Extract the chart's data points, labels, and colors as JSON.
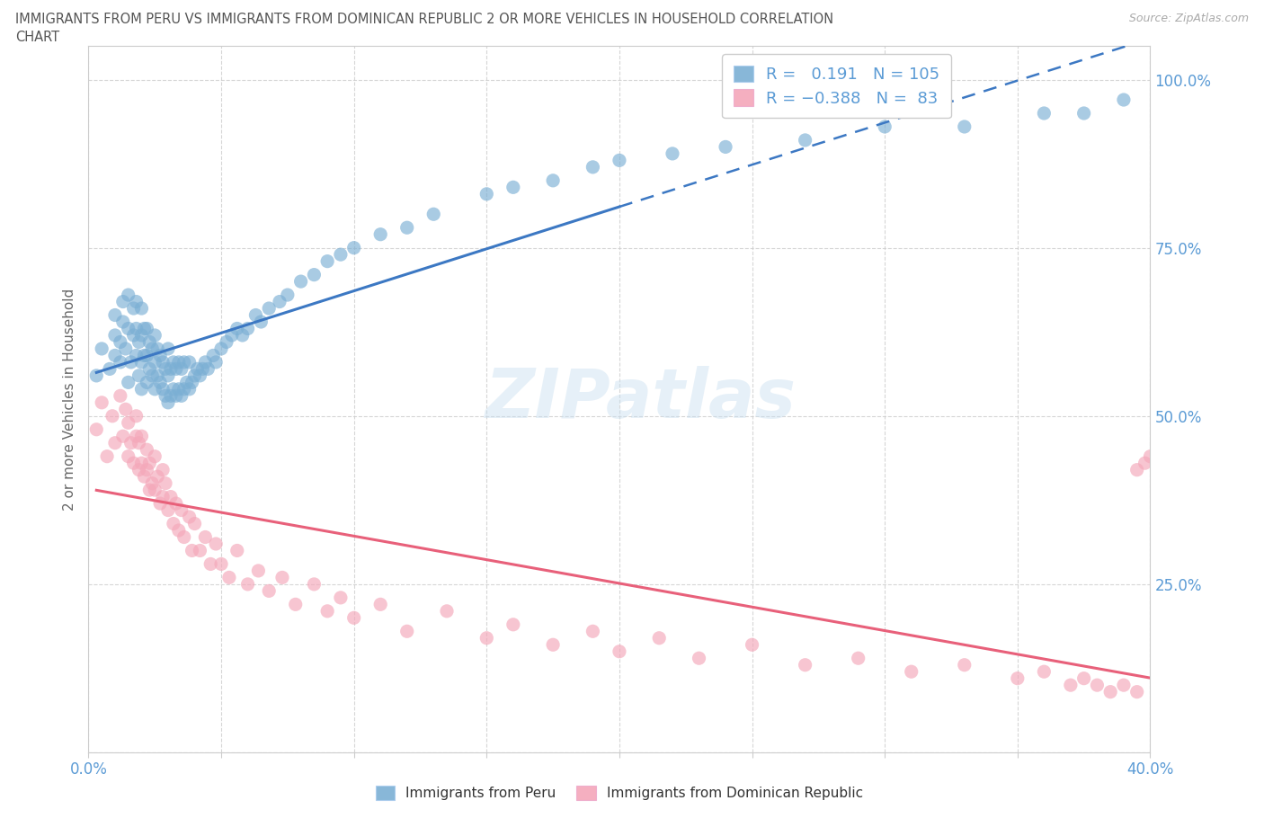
{
  "title_line1": "IMMIGRANTS FROM PERU VS IMMIGRANTS FROM DOMINICAN REPUBLIC 2 OR MORE VEHICLES IN HOUSEHOLD CORRELATION",
  "title_line2": "CHART",
  "source": "Source: ZipAtlas.com",
  "ylabel": "2 or more Vehicles in Household",
  "xlim": [
    0.0,
    0.4
  ],
  "ylim": [
    0.0,
    1.05
  ],
  "yticks": [
    0.0,
    0.25,
    0.5,
    0.75,
    1.0
  ],
  "right_yticklabels": [
    "",
    "25.0%",
    "50.0%",
    "75.0%",
    "100.0%"
  ],
  "blue_color": "#7bafd4",
  "pink_color": "#f4a7b9",
  "blue_line_color": "#3c78c3",
  "pink_line_color": "#e8607a",
  "blue_r": 0.191,
  "blue_n": 105,
  "pink_r": -0.388,
  "pink_n": 83,
  "legend_label_blue": "Immigrants from Peru",
  "legend_label_pink": "Immigrants from Dominican Republic",
  "watermark": "ZIPatlas",
  "background_color": "#ffffff",
  "grid_color": "#cccccc",
  "tick_label_color": "#5b9bd5",
  "title_color": "#555555",
  "peru_x": [
    0.003,
    0.005,
    0.008,
    0.01,
    0.01,
    0.01,
    0.012,
    0.012,
    0.013,
    0.013,
    0.014,
    0.015,
    0.015,
    0.015,
    0.016,
    0.017,
    0.017,
    0.018,
    0.018,
    0.018,
    0.019,
    0.019,
    0.02,
    0.02,
    0.02,
    0.02,
    0.021,
    0.021,
    0.022,
    0.022,
    0.022,
    0.023,
    0.023,
    0.024,
    0.024,
    0.025,
    0.025,
    0.025,
    0.026,
    0.026,
    0.027,
    0.027,
    0.028,
    0.028,
    0.029,
    0.029,
    0.03,
    0.03,
    0.03,
    0.031,
    0.031,
    0.032,
    0.032,
    0.033,
    0.033,
    0.034,
    0.034,
    0.035,
    0.035,
    0.036,
    0.036,
    0.037,
    0.038,
    0.038,
    0.039,
    0.04,
    0.041,
    0.042,
    0.043,
    0.044,
    0.045,
    0.047,
    0.048,
    0.05,
    0.052,
    0.054,
    0.056,
    0.058,
    0.06,
    0.063,
    0.065,
    0.068,
    0.072,
    0.075,
    0.08,
    0.085,
    0.09,
    0.095,
    0.1,
    0.11,
    0.12,
    0.13,
    0.15,
    0.16,
    0.175,
    0.19,
    0.2,
    0.22,
    0.24,
    0.27,
    0.3,
    0.33,
    0.36,
    0.375,
    0.39
  ],
  "peru_y": [
    0.56,
    0.6,
    0.57,
    0.59,
    0.62,
    0.65,
    0.58,
    0.61,
    0.64,
    0.67,
    0.6,
    0.55,
    0.63,
    0.68,
    0.58,
    0.62,
    0.66,
    0.59,
    0.63,
    0.67,
    0.56,
    0.61,
    0.54,
    0.58,
    0.62,
    0.66,
    0.59,
    0.63,
    0.55,
    0.59,
    0.63,
    0.57,
    0.61,
    0.56,
    0.6,
    0.54,
    0.58,
    0.62,
    0.56,
    0.6,
    0.55,
    0.59,
    0.54,
    0.58,
    0.53,
    0.57,
    0.52,
    0.56,
    0.6,
    0.53,
    0.57,
    0.54,
    0.58,
    0.53,
    0.57,
    0.54,
    0.58,
    0.53,
    0.57,
    0.54,
    0.58,
    0.55,
    0.54,
    0.58,
    0.55,
    0.56,
    0.57,
    0.56,
    0.57,
    0.58,
    0.57,
    0.59,
    0.58,
    0.6,
    0.61,
    0.62,
    0.63,
    0.62,
    0.63,
    0.65,
    0.64,
    0.66,
    0.67,
    0.68,
    0.7,
    0.71,
    0.73,
    0.74,
    0.75,
    0.77,
    0.78,
    0.8,
    0.83,
    0.84,
    0.85,
    0.87,
    0.88,
    0.89,
    0.9,
    0.91,
    0.93,
    0.93,
    0.95,
    0.95,
    0.97
  ],
  "dr_x": [
    0.003,
    0.005,
    0.007,
    0.009,
    0.01,
    0.012,
    0.013,
    0.014,
    0.015,
    0.015,
    0.016,
    0.017,
    0.018,
    0.018,
    0.019,
    0.019,
    0.02,
    0.02,
    0.021,
    0.022,
    0.022,
    0.023,
    0.023,
    0.024,
    0.025,
    0.025,
    0.026,
    0.027,
    0.028,
    0.028,
    0.029,
    0.03,
    0.031,
    0.032,
    0.033,
    0.034,
    0.035,
    0.036,
    0.038,
    0.039,
    0.04,
    0.042,
    0.044,
    0.046,
    0.048,
    0.05,
    0.053,
    0.056,
    0.06,
    0.064,
    0.068,
    0.073,
    0.078,
    0.085,
    0.09,
    0.095,
    0.1,
    0.11,
    0.12,
    0.135,
    0.15,
    0.16,
    0.175,
    0.19,
    0.2,
    0.215,
    0.23,
    0.25,
    0.27,
    0.29,
    0.31,
    0.33,
    0.35,
    0.36,
    0.37,
    0.375,
    0.38,
    0.385,
    0.39,
    0.395,
    0.395,
    0.398,
    0.4
  ],
  "dr_y": [
    0.48,
    0.52,
    0.44,
    0.5,
    0.46,
    0.53,
    0.47,
    0.51,
    0.44,
    0.49,
    0.46,
    0.43,
    0.47,
    0.5,
    0.42,
    0.46,
    0.43,
    0.47,
    0.41,
    0.45,
    0.42,
    0.39,
    0.43,
    0.4,
    0.44,
    0.39,
    0.41,
    0.37,
    0.42,
    0.38,
    0.4,
    0.36,
    0.38,
    0.34,
    0.37,
    0.33,
    0.36,
    0.32,
    0.35,
    0.3,
    0.34,
    0.3,
    0.32,
    0.28,
    0.31,
    0.28,
    0.26,
    0.3,
    0.25,
    0.27,
    0.24,
    0.26,
    0.22,
    0.25,
    0.21,
    0.23,
    0.2,
    0.22,
    0.18,
    0.21,
    0.17,
    0.19,
    0.16,
    0.18,
    0.15,
    0.17,
    0.14,
    0.16,
    0.13,
    0.14,
    0.12,
    0.13,
    0.11,
    0.12,
    0.1,
    0.11,
    0.1,
    0.09,
    0.1,
    0.09,
    0.42,
    0.43,
    0.44
  ],
  "blue_line_solid_xlim": [
    0.003,
    0.2
  ],
  "blue_line_dash_xlim": [
    0.2,
    0.4
  ],
  "pink_line_xlim": [
    0.003,
    0.4
  ]
}
